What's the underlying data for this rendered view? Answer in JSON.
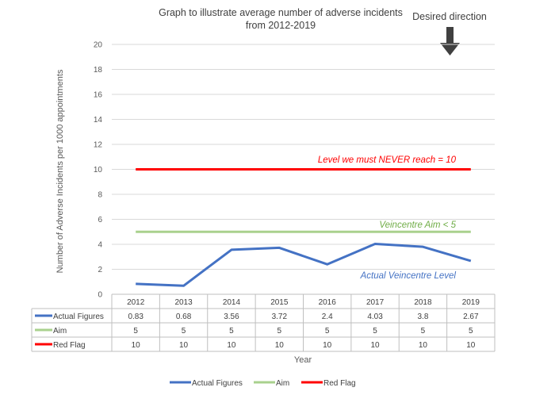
{
  "chart_data": {
    "type": "line",
    "title_line1": "Graph to illustrate average number of adverse incidents",
    "title_line2": "from 2012-2019",
    "xlabel": "Year",
    "ylabel": "Number of Adverse Incidents per 1000 appointments",
    "ylim": [
      0,
      20
    ],
    "yticks": [
      "0",
      "2",
      "4",
      "6",
      "8",
      "10",
      "12",
      "14",
      "16",
      "18",
      "20"
    ],
    "categories": [
      "2012",
      "2013",
      "2014",
      "2015",
      "2016",
      "2017",
      "2018",
      "2019"
    ],
    "grid": true,
    "legend_position": "bottom",
    "series": [
      {
        "name": "Actual Figures",
        "color": "#4472C4",
        "values": [
          0.83,
          0.68,
          3.56,
          3.72,
          2.4,
          4.03,
          3.8,
          2.67
        ],
        "labels": [
          "0.83",
          "0.68",
          "3.56",
          "3.72",
          "2.4",
          "4.03",
          "3.8",
          "2.67"
        ]
      },
      {
        "name": "Aim",
        "color": "#A9D18E",
        "values": [
          5,
          5,
          5,
          5,
          5,
          5,
          5,
          5
        ],
        "labels": [
          "5",
          "5",
          "5",
          "5",
          "5",
          "5",
          "5",
          "5"
        ]
      },
      {
        "name": "Red Flag",
        "color": "#FF0000",
        "values": [
          10,
          10,
          10,
          10,
          10,
          10,
          10,
          10
        ],
        "labels": [
          "10",
          "10",
          "10",
          "10",
          "10",
          "10",
          "10",
          "10"
        ]
      }
    ],
    "annotations": {
      "red_flag": "Level we must NEVER reach = 10",
      "aim": "Veincentre Aim < 5",
      "actual": "Actual Veincentre Level",
      "direction": "Desired direction"
    },
    "colors": {
      "annotation_red": "#FF0000",
      "annotation_green": "#70AD47",
      "annotation_blue": "#4472C4",
      "arrow": "#404040"
    },
    "icons": {
      "direction": "arrow-down-icon"
    }
  }
}
